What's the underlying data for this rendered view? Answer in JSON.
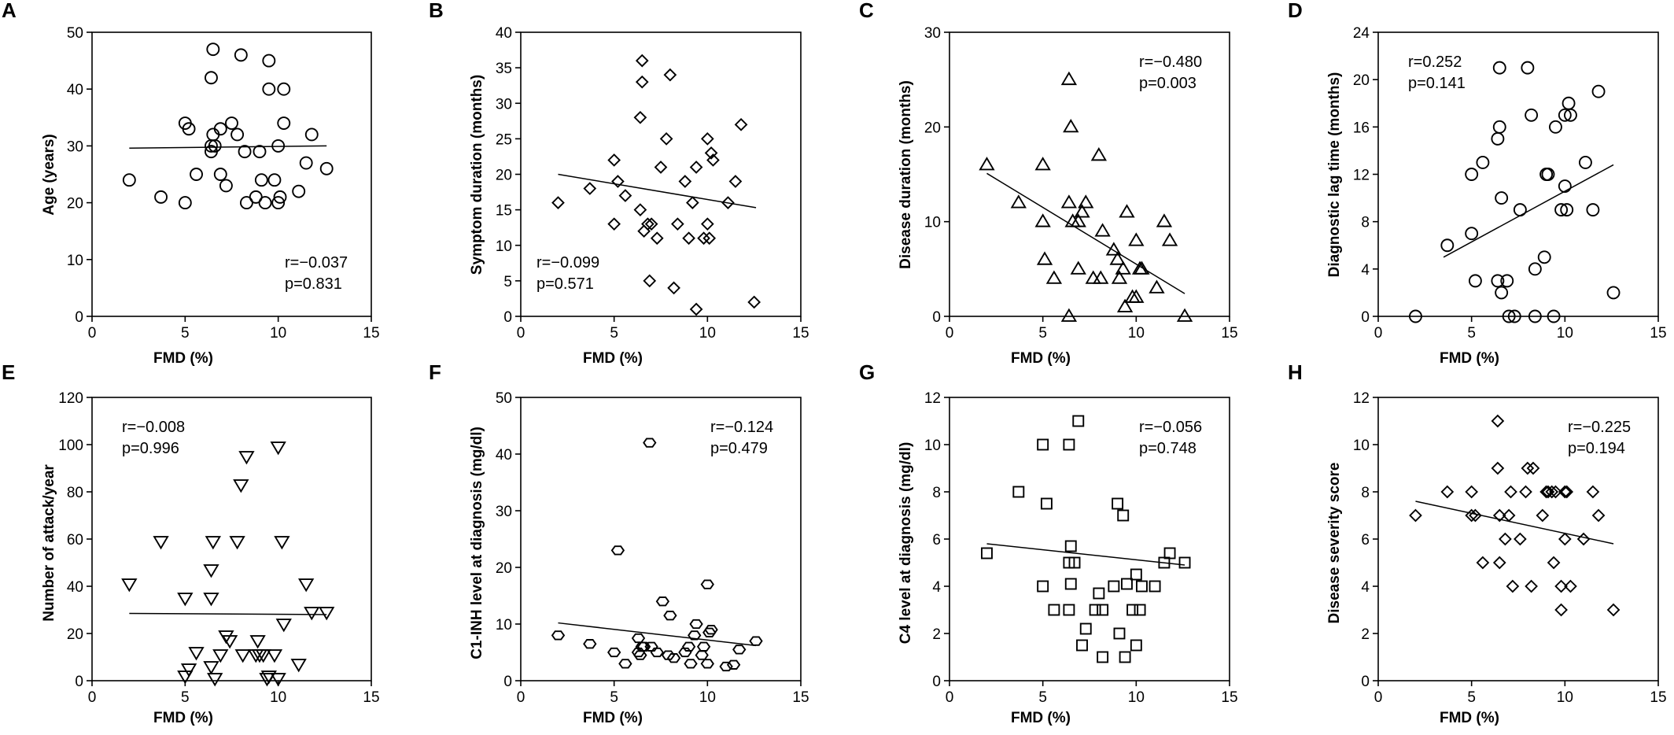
{
  "chart_data": [
    {
      "panel": "A",
      "type": "scatter",
      "marker": "circle",
      "xlabel": "FMD (%)",
      "ylabel": "Age (years)",
      "xlim": [
        0,
        15
      ],
      "ylim": [
        0,
        50
      ],
      "xticks": [
        0,
        5,
        10,
        15
      ],
      "yticks": [
        0,
        10,
        20,
        30,
        40,
        50
      ],
      "stats": {
        "r": "r=−0.037",
        "p": "p=0.831",
        "position": "bottom-right"
      },
      "fit_line": [
        [
          2.0,
          29.6
        ],
        [
          12.6,
          30.0
        ]
      ],
      "points": [
        [
          2.0,
          24
        ],
        [
          3.7,
          21
        ],
        [
          5.0,
          20
        ],
        [
          5.0,
          34
        ],
        [
          5.2,
          33
        ],
        [
          5.6,
          25
        ],
        [
          6.4,
          29
        ],
        [
          6.4,
          30
        ],
        [
          6.4,
          42
        ],
        [
          6.5,
          47
        ],
        [
          6.5,
          32
        ],
        [
          6.6,
          30
        ],
        [
          6.9,
          25
        ],
        [
          6.9,
          33
        ],
        [
          7.2,
          23
        ],
        [
          7.5,
          34
        ],
        [
          7.8,
          32
        ],
        [
          8.0,
          46
        ],
        [
          8.2,
          29
        ],
        [
          8.3,
          20
        ],
        [
          8.8,
          21
        ],
        [
          9.0,
          29
        ],
        [
          9.1,
          24
        ],
        [
          9.3,
          20
        ],
        [
          9.5,
          45
        ],
        [
          9.5,
          40
        ],
        [
          9.8,
          24
        ],
        [
          10.0,
          20
        ],
        [
          10.0,
          30
        ],
        [
          10.1,
          21
        ],
        [
          10.3,
          34
        ],
        [
          10.3,
          40
        ],
        [
          11.1,
          22
        ],
        [
          11.5,
          27
        ],
        [
          11.8,
          32
        ],
        [
          12.6,
          26
        ]
      ]
    },
    {
      "panel": "B",
      "type": "scatter",
      "marker": "diamond",
      "xlabel": "FMD (%)",
      "ylabel": "Symptom duration (months)",
      "xlim": [
        0,
        15
      ],
      "ylim": [
        0,
        40
      ],
      "xticks": [
        0,
        5,
        10,
        15
      ],
      "yticks": [
        0,
        5,
        10,
        15,
        20,
        25,
        30,
        35,
        40
      ],
      "stats": {
        "r": "r=−0.099",
        "p": "p=0.571",
        "position": "bottom-left"
      },
      "fit_line": [
        [
          2.0,
          20.0
        ],
        [
          12.6,
          15.3
        ]
      ],
      "points": [
        [
          2.0,
          16
        ],
        [
          3.7,
          18
        ],
        [
          5.0,
          13
        ],
        [
          5.0,
          22
        ],
        [
          5.2,
          19
        ],
        [
          5.6,
          17
        ],
        [
          6.4,
          15
        ],
        [
          6.4,
          28
        ],
        [
          6.5,
          33
        ],
        [
          6.5,
          36
        ],
        [
          6.6,
          12
        ],
        [
          6.8,
          13
        ],
        [
          6.9,
          5
        ],
        [
          7.0,
          13
        ],
        [
          7.3,
          11
        ],
        [
          7.5,
          21
        ],
        [
          7.8,
          25
        ],
        [
          8.0,
          34
        ],
        [
          8.2,
          4
        ],
        [
          8.4,
          13
        ],
        [
          8.8,
          19
        ],
        [
          9.0,
          11
        ],
        [
          9.2,
          16
        ],
        [
          9.4,
          21
        ],
        [
          9.4,
          1
        ],
        [
          9.8,
          11
        ],
        [
          10.0,
          13
        ],
        [
          10.0,
          25
        ],
        [
          10.1,
          11
        ],
        [
          10.2,
          23
        ],
        [
          10.3,
          22
        ],
        [
          11.1,
          16
        ],
        [
          11.5,
          19
        ],
        [
          11.8,
          27
        ],
        [
          12.5,
          2
        ]
      ]
    },
    {
      "panel": "C",
      "type": "scatter",
      "marker": "triangle-up",
      "xlabel": "FMD (%)",
      "ylabel": "Disease duration (months)",
      "xlim": [
        0,
        15
      ],
      "ylim": [
        0,
        30
      ],
      "xticks": [
        0,
        5,
        10,
        15
      ],
      "yticks": [
        0,
        10,
        20,
        30
      ],
      "stats": {
        "r": "r=−0.480",
        "p": "p=0.003",
        "position": "top-right"
      },
      "fit_line": [
        [
          2.0,
          15.1
        ],
        [
          12.6,
          2.4
        ]
      ],
      "points": [
        [
          2.0,
          16
        ],
        [
          3.7,
          12
        ],
        [
          5.0,
          16
        ],
        [
          5.0,
          10
        ],
        [
          5.1,
          6
        ],
        [
          5.6,
          4
        ],
        [
          6.4,
          25
        ],
        [
          6.4,
          12
        ],
        [
          6.4,
          0
        ],
        [
          6.5,
          20
        ],
        [
          6.6,
          10
        ],
        [
          6.9,
          10
        ],
        [
          6.9,
          5
        ],
        [
          7.1,
          11
        ],
        [
          7.3,
          12
        ],
        [
          7.7,
          4
        ],
        [
          8.0,
          17
        ],
        [
          8.1,
          4
        ],
        [
          8.2,
          9
        ],
        [
          8.8,
          7
        ],
        [
          9.0,
          6
        ],
        [
          9.1,
          4
        ],
        [
          9.3,
          5
        ],
        [
          9.4,
          1
        ],
        [
          9.5,
          11
        ],
        [
          9.8,
          2
        ],
        [
          10.0,
          8
        ],
        [
          10.0,
          2
        ],
        [
          10.2,
          5
        ],
        [
          10.3,
          5
        ],
        [
          11.1,
          3
        ],
        [
          11.5,
          10
        ],
        [
          11.8,
          8
        ],
        [
          12.6,
          0
        ]
      ]
    },
    {
      "panel": "D",
      "type": "scatter",
      "marker": "circle",
      "xlabel": "FMD (%)",
      "ylabel": "Diagnostic lag time (months)",
      "xlim": [
        0,
        15
      ],
      "ylim": [
        0,
        24
      ],
      "xticks": [
        0,
        5,
        10,
        15
      ],
      "yticks": [
        0,
        4,
        8,
        12,
        16,
        20,
        24
      ],
      "stats": {
        "r": "r=0.252",
        "p": "p=0.141",
        "position": "top-left"
      },
      "fit_line": [
        [
          3.5,
          5.0
        ],
        [
          12.6,
          12.8
        ]
      ],
      "points": [
        [
          2.0,
          0
        ],
        [
          3.7,
          6
        ],
        [
          5.0,
          7
        ],
        [
          5.0,
          12
        ],
        [
          5.2,
          3
        ],
        [
          5.6,
          13
        ],
        [
          6.4,
          3
        ],
        [
          6.4,
          15
        ],
        [
          6.5,
          21
        ],
        [
          6.5,
          16
        ],
        [
          6.6,
          2
        ],
        [
          6.6,
          10
        ],
        [
          6.9,
          3
        ],
        [
          7.0,
          0
        ],
        [
          7.3,
          0
        ],
        [
          7.6,
          9
        ],
        [
          8.0,
          21
        ],
        [
          8.2,
          17
        ],
        [
          8.4,
          4
        ],
        [
          8.4,
          0
        ],
        [
          8.9,
          5
        ],
        [
          9.0,
          12
        ],
        [
          9.1,
          12
        ],
        [
          9.4,
          0
        ],
        [
          9.5,
          16
        ],
        [
          9.8,
          9
        ],
        [
          10.0,
          11
        ],
        [
          10.0,
          17
        ],
        [
          10.1,
          9
        ],
        [
          10.2,
          18
        ],
        [
          10.3,
          17
        ],
        [
          11.1,
          13
        ],
        [
          11.5,
          9
        ],
        [
          11.8,
          19
        ],
        [
          12.6,
          2
        ]
      ]
    },
    {
      "panel": "E",
      "type": "scatter",
      "marker": "triangle-down",
      "xlabel": "FMD (%)",
      "ylabel": "Number of attack/year",
      "xlim": [
        0,
        15
      ],
      "ylim": [
        0,
        120
      ],
      "xticks": [
        0,
        5,
        10,
        15
      ],
      "yticks": [
        0,
        20,
        40,
        60,
        80,
        100,
        120
      ],
      "stats": {
        "r": "r=−0.008",
        "p": "p=0.996",
        "position": "top-left"
      },
      "fit_line": [
        [
          2.0,
          28.5
        ],
        [
          12.6,
          28.0
        ]
      ],
      "points": [
        [
          2.0,
          41
        ],
        [
          3.7,
          59
        ],
        [
          5.0,
          35
        ],
        [
          5.0,
          2
        ],
        [
          5.2,
          5
        ],
        [
          5.6,
          12
        ],
        [
          6.4,
          47
        ],
        [
          6.4,
          35
        ],
        [
          6.4,
          6
        ],
        [
          6.5,
          59
        ],
        [
          6.6,
          1
        ],
        [
          6.9,
          11
        ],
        [
          7.2,
          19
        ],
        [
          7.4,
          17
        ],
        [
          7.8,
          59
        ],
        [
          8.0,
          83
        ],
        [
          8.1,
          11
        ],
        [
          8.3,
          95
        ],
        [
          8.8,
          11
        ],
        [
          8.9,
          17
        ],
        [
          9.0,
          11
        ],
        [
          9.2,
          11
        ],
        [
          9.4,
          1
        ],
        [
          9.5,
          2
        ],
        [
          9.8,
          11
        ],
        [
          10.0,
          99
        ],
        [
          10.2,
          59
        ],
        [
          10.3,
          24
        ],
        [
          10.0,
          1
        ],
        [
          11.1,
          7
        ],
        [
          11.5,
          41
        ],
        [
          11.8,
          29
        ],
        [
          12.6,
          29
        ]
      ]
    },
    {
      "panel": "F",
      "type": "scatter",
      "marker": "hexagon",
      "xlabel": "FMD (%)",
      "ylabel": "C1-INH level at diagnosis (mg/dl)",
      "xlim": [
        0,
        15
      ],
      "ylim": [
        0,
        50
      ],
      "xticks": [
        0,
        5,
        10,
        15
      ],
      "yticks": [
        0,
        10,
        20,
        30,
        40,
        50
      ],
      "stats": {
        "r": "r=−0.124",
        "p": "p=0.479",
        "position": "top-right"
      },
      "fit_line": [
        [
          2.0,
          10.2
        ],
        [
          12.6,
          6.2
        ]
      ],
      "points": [
        [
          2.0,
          8
        ],
        [
          3.7,
          6.5
        ],
        [
          5.0,
          5
        ],
        [
          5.2,
          23
        ],
        [
          5.6,
          3
        ],
        [
          6.3,
          7.5
        ],
        [
          6.3,
          5
        ],
        [
          6.4,
          4.5
        ],
        [
          6.5,
          6
        ],
        [
          6.6,
          6
        ],
        [
          6.9,
          42
        ],
        [
          7.0,
          6
        ],
        [
          7.3,
          5
        ],
        [
          7.6,
          14
        ],
        [
          7.9,
          4.5
        ],
        [
          8.0,
          11.5
        ],
        [
          8.2,
          4
        ],
        [
          8.8,
          5
        ],
        [
          9.0,
          6
        ],
        [
          9.1,
          3
        ],
        [
          9.3,
          8
        ],
        [
          9.4,
          10
        ],
        [
          9.7,
          4.5
        ],
        [
          9.8,
          6
        ],
        [
          10.0,
          17
        ],
        [
          10.0,
          3
        ],
        [
          10.1,
          8.5
        ],
        [
          10.2,
          9
        ],
        [
          11.0,
          2.5
        ],
        [
          11.4,
          2.8
        ],
        [
          11.7,
          5.5
        ],
        [
          12.6,
          7
        ]
      ]
    },
    {
      "panel": "G",
      "type": "scatter",
      "marker": "square",
      "xlabel": "FMD (%)",
      "ylabel": "C4 level at diagnosis (mg/dl)",
      "xlim": [
        0,
        15
      ],
      "ylim": [
        0,
        12
      ],
      "xticks": [
        0,
        5,
        10,
        15
      ],
      "yticks": [
        0,
        2,
        4,
        6,
        8,
        10,
        12
      ],
      "stats": {
        "r": "r=−0.056",
        "p": "p=0.748",
        "position": "top-right"
      },
      "fit_line": [
        [
          2.0,
          5.8
        ],
        [
          12.6,
          4.9
        ]
      ],
      "points": [
        [
          2.0,
          5.4
        ],
        [
          3.7,
          8
        ],
        [
          5.0,
          10
        ],
        [
          5.0,
          4
        ],
        [
          5.2,
          7.5
        ],
        [
          5.6,
          3
        ],
        [
          6.4,
          10
        ],
        [
          6.4,
          5
        ],
        [
          6.4,
          3
        ],
        [
          6.5,
          5.7
        ],
        [
          6.5,
          4.1
        ],
        [
          6.7,
          5
        ],
        [
          6.9,
          11
        ],
        [
          7.1,
          1.5
        ],
        [
          7.3,
          2.2
        ],
        [
          7.8,
          3
        ],
        [
          8.0,
          3.7
        ],
        [
          8.2,
          3
        ],
        [
          8.2,
          1
        ],
        [
          8.8,
          4
        ],
        [
          9.0,
          7.5
        ],
        [
          9.1,
          2
        ],
        [
          9.3,
          7
        ],
        [
          9.4,
          1
        ],
        [
          9.5,
          4.1
        ],
        [
          9.8,
          3
        ],
        [
          10.0,
          4.5
        ],
        [
          10.0,
          1.5
        ],
        [
          10.2,
          3
        ],
        [
          10.3,
          4
        ],
        [
          11.0,
          4
        ],
        [
          11.5,
          5
        ],
        [
          11.8,
          5.4
        ],
        [
          12.6,
          5
        ]
      ]
    },
    {
      "panel": "H",
      "type": "scatter",
      "marker": "diamond",
      "xlabel": "FMD (%)",
      "ylabel": "Disease severity score",
      "xlim": [
        0,
        15
      ],
      "ylim": [
        0,
        12
      ],
      "xticks": [
        0,
        5,
        10,
        15
      ],
      "yticks": [
        0,
        2,
        4,
        6,
        8,
        10,
        12
      ],
      "stats": {
        "r": "r=−0.225",
        "p": "p=0.194",
        "position": "top-right"
      },
      "fit_line": [
        [
          2.0,
          7.6
        ],
        [
          12.6,
          5.8
        ]
      ],
      "points": [
        [
          2.0,
          7
        ],
        [
          3.7,
          8
        ],
        [
          5.0,
          7
        ],
        [
          5.0,
          8
        ],
        [
          5.2,
          7
        ],
        [
          5.6,
          5
        ],
        [
          6.4,
          9
        ],
        [
          6.4,
          11
        ],
        [
          6.5,
          5
        ],
        [
          6.5,
          7
        ],
        [
          6.8,
          6
        ],
        [
          7.0,
          7
        ],
        [
          7.1,
          8
        ],
        [
          7.2,
          4
        ],
        [
          7.6,
          6
        ],
        [
          7.9,
          8
        ],
        [
          8.0,
          9
        ],
        [
          8.2,
          4
        ],
        [
          8.3,
          9
        ],
        [
          8.8,
          7
        ],
        [
          9.0,
          8
        ],
        [
          9.1,
          8
        ],
        [
          9.3,
          8
        ],
        [
          9.4,
          5
        ],
        [
          9.5,
          8
        ],
        [
          9.8,
          4
        ],
        [
          9.8,
          3
        ],
        [
          10.0,
          8
        ],
        [
          10.0,
          6
        ],
        [
          10.1,
          8
        ],
        [
          10.3,
          4
        ],
        [
          11.0,
          6
        ],
        [
          11.5,
          8
        ],
        [
          11.8,
          7
        ],
        [
          12.6,
          3
        ]
      ]
    }
  ]
}
